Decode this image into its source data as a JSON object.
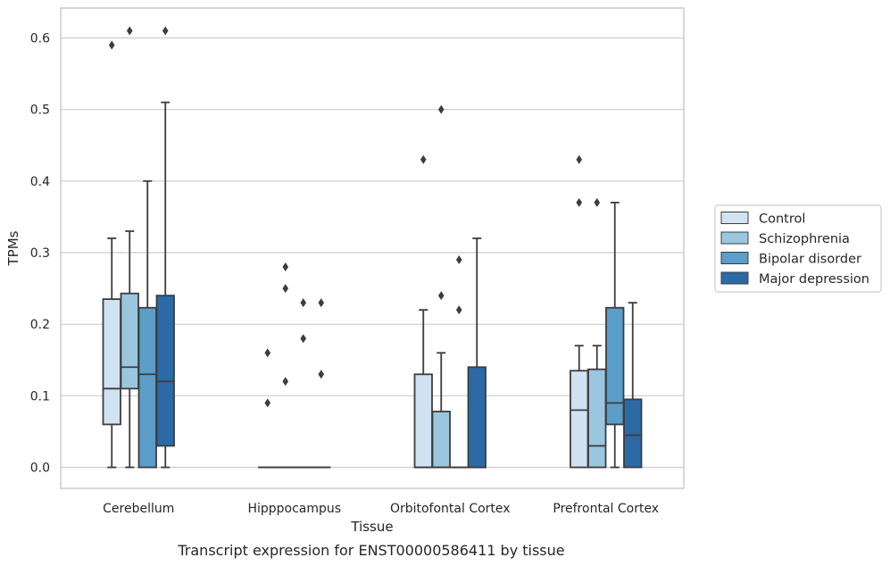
{
  "chart_data": {
    "type": "box",
    "xlabel": "Tissue",
    "ylabel": "TPMs",
    "caption": "Transcript expression for ENST00000586411 by tissue",
    "ylim": [
      -0.03,
      0.64
    ],
    "yticks": [
      "0.0",
      "0.1",
      "0.2",
      "0.3",
      "0.4",
      "0.5",
      "0.6"
    ],
    "yticks_values": [
      0.0,
      0.1,
      0.2,
      0.3,
      0.4,
      0.5,
      0.6
    ],
    "grid": "horizontal",
    "legend_position": "outside-right",
    "categories": [
      "Cerebellum",
      "Hipppocampus",
      "Orbitofontal Cortex",
      "Prefrontal Cortex"
    ],
    "series": [
      {
        "name": "Control",
        "color": "#d1e2f2",
        "boxes": [
          {
            "min": 0.0,
            "q1": 0.06,
            "median": 0.11,
            "q3": 0.235,
            "max": 0.32,
            "outliers": [
              0.59
            ]
          },
          {
            "min": 0.0,
            "q1": 0.0,
            "median": 0.0,
            "q3": 0.0,
            "max": 0.0,
            "outliers": [
              0.09,
              0.16
            ]
          },
          {
            "min": 0.0,
            "q1": 0.0,
            "median": 0.0,
            "q3": 0.13,
            "max": 0.22,
            "outliers": [
              0.43
            ]
          },
          {
            "min": 0.0,
            "q1": 0.0,
            "median": 0.08,
            "q3": 0.135,
            "max": 0.17,
            "outliers": [
              0.37,
              0.43
            ]
          }
        ]
      },
      {
        "name": "Schizophrenia",
        "color": "#9ac7df",
        "boxes": [
          {
            "min": 0.0,
            "q1": 0.11,
            "median": 0.14,
            "q3": 0.243,
            "max": 0.33,
            "outliers": [
              0.61
            ]
          },
          {
            "min": 0.0,
            "q1": 0.0,
            "median": 0.0,
            "q3": 0.0,
            "max": 0.0,
            "outliers": [
              0.12,
              0.25,
              0.28
            ]
          },
          {
            "min": 0.0,
            "q1": 0.0,
            "median": 0.0,
            "q3": 0.078,
            "max": 0.16,
            "outliers": [
              0.24,
              0.5
            ]
          },
          {
            "min": 0.0,
            "q1": 0.0,
            "median": 0.03,
            "q3": 0.137,
            "max": 0.17,
            "outliers": [
              0.37
            ]
          }
        ]
      },
      {
        "name": "Bipolar disorder",
        "color": "#5a9ec9",
        "boxes": [
          {
            "min": 0.0,
            "q1": 0.0,
            "median": 0.13,
            "q3": 0.223,
            "max": 0.4,
            "outliers": []
          },
          {
            "min": 0.0,
            "q1": 0.0,
            "median": 0.0,
            "q3": 0.0,
            "max": 0.0,
            "outliers": [
              0.18,
              0.23
            ]
          },
          {
            "min": 0.0,
            "q1": 0.0,
            "median": 0.0,
            "q3": 0.0,
            "max": 0.0,
            "outliers": [
              0.22,
              0.29
            ]
          },
          {
            "min": 0.0,
            "q1": 0.06,
            "median": 0.09,
            "q3": 0.223,
            "max": 0.37,
            "outliers": []
          }
        ]
      },
      {
        "name": "Major depression",
        "color": "#2b6aa6",
        "boxes": [
          {
            "min": 0.0,
            "q1": 0.03,
            "median": 0.12,
            "q3": 0.24,
            "max": 0.51,
            "outliers": [
              0.61
            ]
          },
          {
            "min": 0.0,
            "q1": 0.0,
            "median": 0.0,
            "q3": 0.0,
            "max": 0.0,
            "outliers": [
              0.13,
              0.23
            ]
          },
          {
            "min": 0.0,
            "q1": 0.0,
            "median": 0.0,
            "q3": 0.14,
            "max": 0.32,
            "outliers": []
          },
          {
            "min": 0.0,
            "q1": 0.0,
            "median": 0.045,
            "q3": 0.095,
            "max": 0.23,
            "outliers": []
          }
        ]
      }
    ]
  }
}
